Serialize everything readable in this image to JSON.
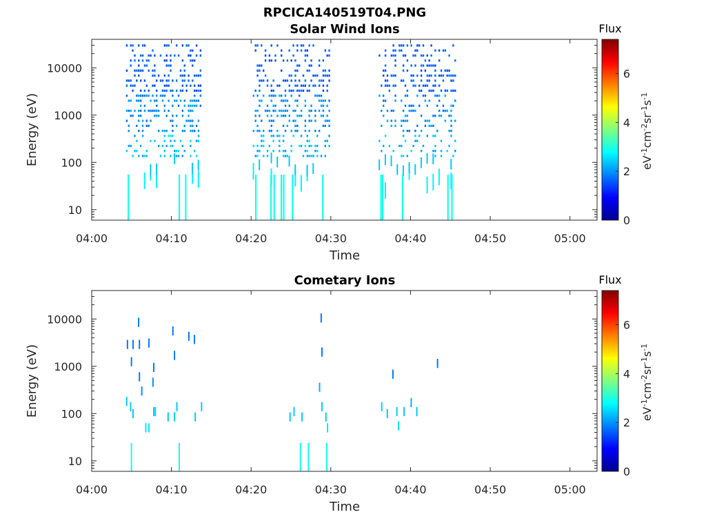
{
  "figure_title": "RPCICA140519T04.PNG",
  "chart_data": [
    {
      "type": "heatmap",
      "title": "Solar Wind Ions",
      "xlabel": "Time",
      "ylabel": "Energy (eV)",
      "x_ticks": [
        "04:00",
        "04:10",
        "04:20",
        "04:30",
        "04:40",
        "04:50",
        "05:00"
      ],
      "xlim_minutes": [
        0,
        63.4
      ],
      "y_scale": "log",
      "y_ticks": [
        "10",
        "100",
        "1000",
        "10000"
      ],
      "ylim": [
        6,
        40000
      ],
      "colorbar": {
        "title": "Flux",
        "label": "eV-1cm-2sr-1s-1",
        "ticks": [
          "0",
          "2",
          "4",
          "6"
        ],
        "range": [
          0,
          7.4
        ],
        "colormap": "jet"
      },
      "bursts": [
        {
          "start_min": 4.3,
          "end_min": 13.6,
          "e_max": 35000,
          "low_lines": [
            4.5,
            10.9,
            11.7
          ],
          "density": 1.0
        },
        {
          "start_min": 20.2,
          "end_min": 29.7,
          "e_max": 32000,
          "low_lines": [
            20.5,
            22.4,
            22.8,
            23.7,
            24.0,
            25.1,
            28.9
          ],
          "density": 0.95
        },
        {
          "start_min": 36.0,
          "end_min": 45.6,
          "e_max": 30000,
          "low_lines": [
            36.2,
            36.4,
            38.9,
            44.6,
            45.1
          ],
          "density": 0.75
        }
      ]
    },
    {
      "type": "heatmap",
      "title": "Cometary Ions",
      "xlabel": "Time",
      "ylabel": "Energy (eV)",
      "x_ticks": [
        "04:00",
        "04:10",
        "04:20",
        "04:30",
        "04:40",
        "04:50",
        "05:00"
      ],
      "xlim_minutes": [
        0,
        63.4
      ],
      "y_scale": "log",
      "y_ticks": [
        "10",
        "100",
        "1000",
        "10000"
      ],
      "ylim": [
        6,
        40000
      ],
      "colorbar": {
        "title": "Flux",
        "label": "eV-1cm-2sr-1s-1",
        "ticks": [
          "0",
          "2",
          "4",
          "6"
        ],
        "range": [
          0,
          7.4
        ],
        "colormap": "jet"
      },
      "points": [
        {
          "t": 4.4,
          "e": 2900,
          "v": 1.8
        },
        {
          "t": 5.1,
          "e": 2900,
          "v": 1.8
        },
        {
          "t": 5.9,
          "e": 2900,
          "v": 1.8
        },
        {
          "t": 7.1,
          "e": 3100,
          "v": 1.8
        },
        {
          "t": 5.8,
          "e": 8500,
          "v": 1.8
        },
        {
          "t": 10.1,
          "e": 5600,
          "v": 1.8
        },
        {
          "t": 12.1,
          "e": 4300,
          "v": 1.8
        },
        {
          "t": 12.8,
          "e": 3700,
          "v": 1.8
        },
        {
          "t": 10.3,
          "e": 1700,
          "v": 1.8
        },
        {
          "t": 4.9,
          "e": 1250,
          "v": 1.8
        },
        {
          "t": 7.7,
          "e": 950,
          "v": 1.8
        },
        {
          "t": 5.9,
          "e": 600,
          "v": 1.8
        },
        {
          "t": 7.6,
          "e": 460,
          "v": 2.0
        },
        {
          "t": 6.2,
          "e": 300,
          "v": 2.0
        },
        {
          "t": 4.3,
          "e": 180,
          "v": 2.4
        },
        {
          "t": 4.8,
          "e": 140,
          "v": 2.4
        },
        {
          "t": 5.1,
          "e": 100,
          "v": 2.4
        },
        {
          "t": 7.7,
          "e": 110,
          "v": 2.4
        },
        {
          "t": 7.9,
          "e": 110,
          "v": 2.4
        },
        {
          "t": 9.5,
          "e": 85,
          "v": 2.4
        },
        {
          "t": 10.3,
          "e": 85,
          "v": 2.4
        },
        {
          "t": 10.6,
          "e": 140,
          "v": 2.4
        },
        {
          "t": 12.9,
          "e": 85,
          "v": 2.4
        },
        {
          "t": 13.7,
          "e": 140,
          "v": 2.4
        },
        {
          "t": 6.7,
          "e": 50,
          "v": 2.6
        },
        {
          "t": 7.1,
          "e": 50,
          "v": 2.6
        },
        {
          "t": 4.9,
          "e": 20,
          "v": 2.9
        },
        {
          "t": 10.9,
          "e": 20,
          "v": 2.9
        },
        {
          "t": 24.8,
          "e": 85,
          "v": 2.4
        },
        {
          "t": 25.3,
          "e": 110,
          "v": 2.4
        },
        {
          "t": 26.3,
          "e": 85,
          "v": 2.4
        },
        {
          "t": 26.1,
          "e": 20,
          "v": 2.9
        },
        {
          "t": 27.1,
          "e": 20,
          "v": 2.9
        },
        {
          "t": 28.7,
          "e": 10500,
          "v": 1.8
        },
        {
          "t": 28.8,
          "e": 2000,
          "v": 1.8
        },
        {
          "t": 28.5,
          "e": 360,
          "v": 2.2
        },
        {
          "t": 28.8,
          "e": 140,
          "v": 2.4
        },
        {
          "t": 29.3,
          "e": 85,
          "v": 2.4
        },
        {
          "t": 29.5,
          "e": 50,
          "v": 2.6
        },
        {
          "t": 29.4,
          "e": 20,
          "v": 2.9
        },
        {
          "t": 36.3,
          "e": 140,
          "v": 2.4
        },
        {
          "t": 37.0,
          "e": 100,
          "v": 2.4
        },
        {
          "t": 37.7,
          "e": 680,
          "v": 1.8
        },
        {
          "t": 38.2,
          "e": 110,
          "v": 2.4
        },
        {
          "t": 39.1,
          "e": 110,
          "v": 2.4
        },
        {
          "t": 40.7,
          "e": 110,
          "v": 2.4
        },
        {
          "t": 38.4,
          "e": 55,
          "v": 2.6
        },
        {
          "t": 40.0,
          "e": 170,
          "v": 2.2
        },
        {
          "t": 43.3,
          "e": 1150,
          "v": 1.8
        }
      ]
    }
  ]
}
